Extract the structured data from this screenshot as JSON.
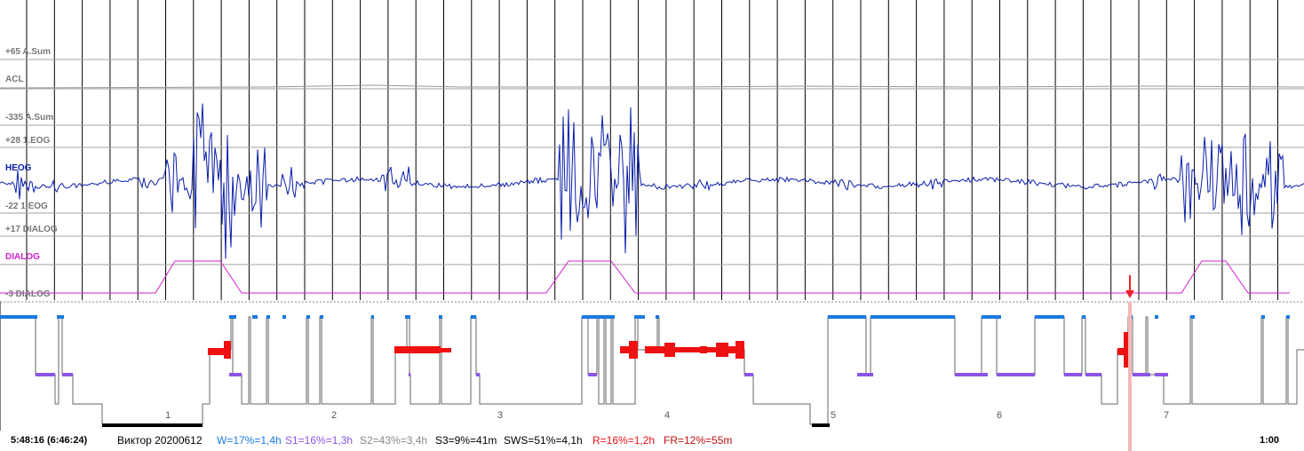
{
  "channels": {
    "asum_high": "+65 A.Sum",
    "acl": "ACL",
    "asum_low": "-335 A.Sum",
    "leog_high": "+28 1.EOG",
    "heog": "HEOG",
    "leog_low": "-22 1.EOG",
    "dialog_high": "+17 DIALOG",
    "dialog": "DIALOG",
    "dialog_low": "-3 DIALOG"
  },
  "colors": {
    "heog": "#0a1eaa",
    "dialog": "#d020d0",
    "wake": "#1a7ae0",
    "s1": "#8a55e6",
    "rem": "#ee1111",
    "sws": "#000000",
    "cursor": "#ee2222"
  },
  "hours": [
    "1",
    "2",
    "3",
    "4",
    "5",
    "6",
    "7"
  ],
  "status": {
    "time": "5:48:16 (6:46:24)",
    "name": "Виктор 20200612",
    "w": "W=17%=1,4h",
    "s1": "S1=16%=1,3h",
    "s2": "S2=43%=3,4h",
    "s3": "S3=9%=41m",
    "sws": "SWS=51%=4,1h",
    "r": "R=16%=1,2h",
    "fr": "FR=12%=55m",
    "duration": "1:00"
  }
}
